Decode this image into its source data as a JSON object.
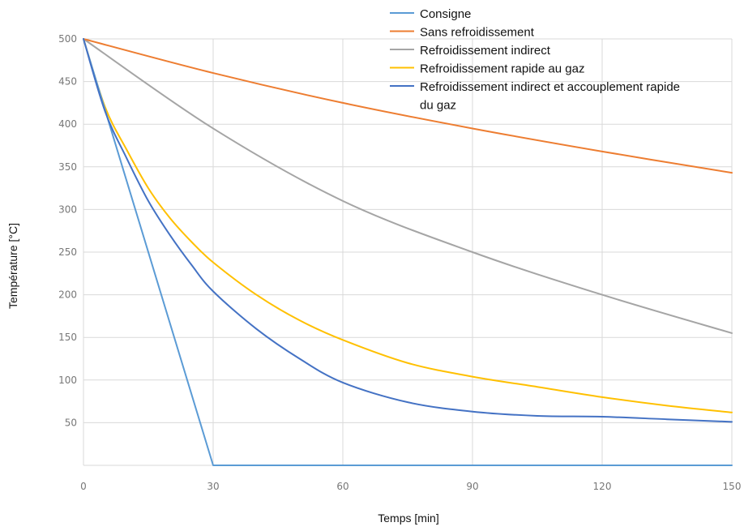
{
  "chart_data": {
    "type": "line",
    "xlabel": "Temps [min]",
    "ylabel": "Température [°C]",
    "xlim": [
      0,
      150
    ],
    "ylim": [
      0,
      500
    ],
    "x_ticks": [
      0,
      30,
      60,
      90,
      120,
      150
    ],
    "y_ticks": [
      50,
      100,
      150,
      200,
      250,
      300,
      350,
      400,
      450,
      500
    ],
    "grid": true,
    "legend_position": "top-right",
    "series": [
      {
        "name": "Consigne",
        "color": "#5b9bd5",
        "x": [
          0,
          30,
          150
        ],
        "y": [
          500,
          0,
          0
        ]
      },
      {
        "name": "Sans refroidissement",
        "color": "#ed7d31",
        "x": [
          0,
          30,
          60,
          90,
          120,
          150
        ],
        "y": [
          500,
          460,
          425,
          395,
          368,
          343
        ]
      },
      {
        "name": "Refroidissement indirect",
        "color": "#a5a5a5",
        "x": [
          0,
          30,
          60,
          90,
          120,
          150
        ],
        "y": [
          500,
          395,
          310,
          250,
          200,
          155
        ]
      },
      {
        "name": "Refroidissement rapide au gaz",
        "color": "#ffc000",
        "x": [
          0,
          5,
          10,
          15,
          20,
          25,
          30,
          40,
          50,
          60,
          75,
          90,
          105,
          120,
          135,
          150
        ],
        "y": [
          500,
          420,
          370,
          325,
          290,
          262,
          238,
          200,
          170,
          147,
          120,
          104,
          92,
          80,
          70,
          62
        ]
      },
      {
        "name": "Refroidissement indirect et accouplement rapide du gaz",
        "legend_lines": [
          "Refroidissement indirect et accouplement rapide",
          "du gaz"
        ],
        "color": "#4472c4",
        "x": [
          0,
          5,
          10,
          15,
          20,
          25,
          30,
          40,
          50,
          60,
          75,
          90,
          105,
          120,
          135,
          150
        ],
        "y": [
          500,
          415,
          360,
          310,
          270,
          235,
          204,
          160,
          125,
          97,
          74,
          63,
          58,
          57,
          54,
          51
        ]
      }
    ]
  }
}
